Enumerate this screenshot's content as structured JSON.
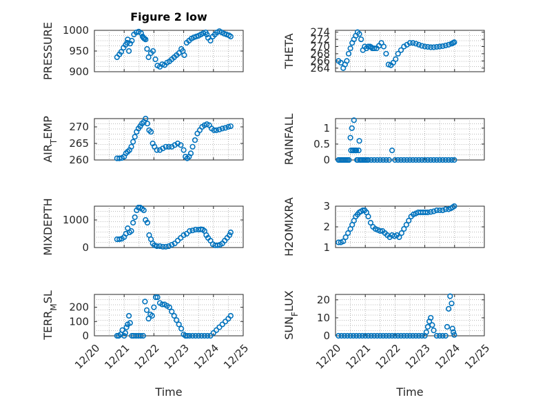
{
  "figure_title": "Figure 2 low",
  "marker_color": "#0072BD",
  "x_tick_labels": [
    "12/20",
    "12/21",
    "12/22",
    "12/23",
    "12/24",
    "12/25"
  ],
  "x_label": "Time",
  "chart_data": [
    {
      "type": "scatter",
      "title": "Figure 2 low",
      "ylabel": "PRESSURE",
      "ylim": [
        900,
        1000
      ],
      "yticks": [
        900,
        950,
        1000
      ],
      "xlim": [
        0,
        5
      ],
      "grid": true,
      "x": [
        0.76,
        0.84,
        0.9,
        0.98,
        1.05,
        1.1,
        1.12,
        1.16,
        1.2,
        1.26,
        1.33,
        1.41,
        1.49,
        1.57,
        1.62,
        1.65,
        1.68,
        1.72,
        1.77,
        1.82,
        1.9,
        1.97,
        2.05,
        2.12,
        2.2,
        2.28,
        2.36,
        2.44,
        2.52,
        2.6,
        2.68,
        2.76,
        2.84,
        2.92,
        2.97,
        3.02,
        3.1,
        3.18,
        3.26,
        3.34,
        3.42,
        3.5,
        3.58,
        3.66,
        3.74,
        3.78,
        3.82,
        3.9,
        3.98,
        4.05,
        4.12,
        4.2,
        4.28,
        4.36,
        4.44,
        4.52,
        4.58
      ],
      "y": [
        935,
        942,
        948,
        958,
        965,
        970,
        978,
        950,
        968,
        975,
        990,
        995,
        997,
        993,
        985,
        982,
        980,
        978,
        955,
        935,
        945,
        950,
        930,
        915,
        912,
        918,
        916,
        922,
        925,
        930,
        935,
        940,
        945,
        955,
        950,
        940,
        970,
        975,
        980,
        983,
        985,
        987,
        990,
        993,
        995,
        990,
        982,
        975,
        985,
        990,
        995,
        998,
        995,
        992,
        990,
        988,
        985
      ]
    },
    {
      "type": "scatter",
      "ylabel": "THETA",
      "ylim": [
        263,
        274.5
      ],
      "yticks": [
        264,
        266,
        268,
        270,
        272,
        274
      ],
      "xlim": [
        0,
        5
      ],
      "grid": true,
      "x": [
        0.1,
        0.18,
        0.26,
        0.32,
        0.38,
        0.44,
        0.5,
        0.56,
        0.62,
        0.68,
        0.74,
        0.8,
        0.86,
        0.92,
        0.98,
        1.04,
        1.1,
        1.16,
        1.2,
        1.24,
        1.3,
        1.38,
        1.46,
        1.54,
        1.62,
        1.7,
        1.78,
        1.86,
        1.94,
        2.02,
        2.1,
        2.2,
        2.3,
        2.4,
        2.5,
        2.6,
        2.7,
        2.8,
        2.9,
        3.0,
        3.1,
        3.2,
        3.3,
        3.4,
        3.5,
        3.6,
        3.7,
        3.8,
        3.9,
        3.95,
        3.99
      ],
      "y": [
        266,
        265.5,
        264,
        265,
        266,
        268,
        269.5,
        271,
        272,
        273,
        274,
        273.5,
        272,
        269,
        270,
        269.5,
        270,
        270,
        269.8,
        269.5,
        269.5,
        269.5,
        270.2,
        271,
        270,
        268,
        265,
        264.8,
        265.5,
        266.5,
        268,
        269,
        270,
        270.5,
        271,
        271,
        270.8,
        270.5,
        270.2,
        270,
        269.9,
        269.8,
        269.8,
        269.9,
        270,
        270.1,
        270.3,
        270.5,
        270.8,
        271,
        271.2
      ]
    },
    {
      "type": "scatter",
      "ylabel": "AIR_TEMP",
      "ylim": [
        260,
        272.5
      ],
      "yticks": [
        260,
        265,
        270
      ],
      "xlim": [
        0,
        5
      ],
      "grid": true,
      "x": [
        0.76,
        0.84,
        0.92,
        1.0,
        1.06,
        1.12,
        1.18,
        1.24,
        1.3,
        1.36,
        1.42,
        1.48,
        1.54,
        1.6,
        1.66,
        1.72,
        1.78,
        1.84,
        1.9,
        1.96,
        2.02,
        2.1,
        2.2,
        2.3,
        2.4,
        2.5,
        2.6,
        2.7,
        2.8,
        2.9,
        3.0,
        3.06,
        3.12,
        3.18,
        3.24,
        3.3,
        3.38,
        3.46,
        3.54,
        3.62,
        3.7,
        3.78,
        3.86,
        3.94,
        4.02,
        4.1,
        4.2,
        4.3,
        4.4,
        4.5,
        4.58
      ],
      "y": [
        260.5,
        260.5,
        260.6,
        261,
        262,
        262.5,
        263,
        264,
        265.5,
        267,
        268.5,
        269.5,
        270.2,
        271,
        271.5,
        272.5,
        271,
        269,
        268.5,
        265,
        264,
        263,
        263,
        263.5,
        264,
        264,
        264,
        264.5,
        265,
        264.5,
        263,
        261,
        260.5,
        261,
        262,
        264,
        266,
        268,
        269,
        270,
        270.5,
        270.8,
        270.5,
        269.5,
        269,
        269,
        269.2,
        269.5,
        269.7,
        270,
        270.2
      ]
    },
    {
      "type": "scatter",
      "ylabel": "RAINFALL",
      "ylim": [
        0,
        1.3
      ],
      "yticks": [
        0,
        0.5,
        1
      ],
      "ytick_labels": [
        "0",
        "0.5",
        "1"
      ],
      "xlim": [
        0,
        5
      ],
      "grid": true,
      "x": [
        0.1,
        0.15,
        0.2,
        0.25,
        0.3,
        0.35,
        0.4,
        0.45,
        0.5,
        0.52,
        0.55,
        0.58,
        0.6,
        0.62,
        0.65,
        0.68,
        0.7,
        0.72,
        0.75,
        0.78,
        0.8,
        0.82,
        0.85,
        0.9,
        0.95,
        1.0,
        1.05,
        1.1,
        1.2,
        1.3,
        1.4,
        1.5,
        1.6,
        1.7,
        1.8,
        1.9,
        2.0,
        2.1,
        2.2,
        2.3,
        2.4,
        2.5,
        2.6,
        2.7,
        2.8,
        2.9,
        3.0,
        3.1,
        3.2,
        3.3,
        3.4,
        3.5,
        3.6,
        3.7,
        3.8,
        3.9,
        3.99
      ],
      "y": [
        0,
        0,
        0,
        0,
        0,
        0,
        0,
        0,
        0.7,
        0.3,
        1.0,
        0.3,
        0.3,
        1.25,
        0.3,
        0.3,
        0.3,
        0,
        0,
        0.3,
        0.6,
        0,
        0,
        0,
        0,
        0,
        0,
        0,
        0,
        0,
        0,
        0,
        0,
        0,
        0,
        0.3,
        0,
        0,
        0,
        0,
        0,
        0,
        0,
        0,
        0,
        0,
        0,
        0,
        0,
        0,
        0,
        0,
        0,
        0,
        0,
        0,
        0
      ]
    },
    {
      "type": "scatter",
      "ylabel": "MIXDEPTH",
      "ylim": [
        0,
        1500
      ],
      "yticks": [
        0,
        1000
      ],
      "xlim": [
        0,
        5
      ],
      "grid": true,
      "x": [
        0.76,
        0.84,
        0.92,
        1.0,
        1.06,
        1.12,
        1.18,
        1.24,
        1.3,
        1.36,
        1.42,
        1.48,
        1.54,
        1.6,
        1.66,
        1.72,
        1.78,
        1.84,
        1.9,
        1.96,
        2.02,
        2.1,
        2.2,
        2.3,
        2.4,
        2.5,
        2.6,
        2.7,
        2.8,
        2.9,
        3.0,
        3.1,
        3.2,
        3.3,
        3.4,
        3.5,
        3.58,
        3.64,
        3.7,
        3.76,
        3.82,
        3.9,
        3.98,
        4.06,
        4.14,
        4.22,
        4.3,
        4.38,
        4.46,
        4.54,
        4.58
      ],
      "y": [
        300,
        300,
        320,
        380,
        500,
        700,
        550,
        600,
        900,
        1100,
        1350,
        1450,
        1450,
        1400,
        1350,
        1000,
        900,
        450,
        300,
        150,
        80,
        50,
        50,
        30,
        30,
        50,
        100,
        150,
        250,
        350,
        450,
        500,
        600,
        620,
        650,
        650,
        660,
        650,
        600,
        450,
        350,
        250,
        120,
        80,
        80,
        100,
        150,
        250,
        350,
        450,
        550
      ]
    },
    {
      "type": "scatter",
      "ylabel": "H2OMIXRA",
      "ylim": [
        1,
        3
      ],
      "yticks": [
        1,
        2,
        3
      ],
      "xlim": [
        0,
        5
      ],
      "grid": true,
      "x": [
        0.1,
        0.18,
        0.26,
        0.34,
        0.42,
        0.5,
        0.56,
        0.62,
        0.68,
        0.74,
        0.8,
        0.86,
        0.92,
        0.98,
        1.04,
        1.1,
        1.18,
        1.26,
        1.34,
        1.42,
        1.5,
        1.58,
        1.66,
        1.74,
        1.82,
        1.9,
        1.98,
        2.06,
        2.14,
        2.22,
        2.3,
        2.38,
        2.46,
        2.54,
        2.62,
        2.7,
        2.78,
        2.86,
        2.94,
        3.02,
        3.1,
        3.2,
        3.3,
        3.4,
        3.5,
        3.6,
        3.7,
        3.8,
        3.88,
        3.94,
        3.99
      ],
      "y": [
        1.25,
        1.25,
        1.3,
        1.5,
        1.7,
        1.9,
        2.1,
        2.3,
        2.5,
        2.6,
        2.7,
        2.75,
        2.8,
        2.8,
        2.7,
        2.5,
        2.2,
        2.0,
        1.9,
        1.85,
        1.8,
        1.8,
        1.7,
        1.6,
        1.5,
        1.6,
        1.55,
        1.6,
        1.5,
        1.7,
        1.9,
        2.1,
        2.3,
        2.5,
        2.6,
        2.65,
        2.7,
        2.7,
        2.7,
        2.7,
        2.7,
        2.72,
        2.75,
        2.8,
        2.8,
        2.8,
        2.85,
        2.85,
        2.9,
        2.95,
        3.0
      ]
    },
    {
      "type": "scatter",
      "ylabel": "TERR_MSL",
      "ylim": [
        0,
        290
      ],
      "yticks": [
        0,
        100,
        200
      ],
      "xlim": [
        0,
        5
      ],
      "grid": true,
      "x": [
        0.76,
        0.82,
        0.88,
        0.94,
        1.0,
        1.04,
        1.08,
        1.12,
        1.16,
        1.2,
        1.26,
        1.32,
        1.4,
        1.48,
        1.56,
        1.64,
        1.7,
        1.76,
        1.82,
        1.88,
        1.94,
        2.0,
        2.06,
        2.12,
        2.2,
        2.28,
        2.36,
        2.44,
        2.52,
        2.6,
        2.68,
        2.76,
        2.84,
        2.92,
        3.0,
        3.06,
        3.12,
        3.2,
        3.3,
        3.4,
        3.5,
        3.6,
        3.7,
        3.8,
        3.9,
        4.0,
        4.1,
        4.2,
        4.3,
        4.4,
        4.5,
        4.58
      ],
      "y": [
        0,
        0,
        10,
        40,
        0,
        20,
        60,
        80,
        140,
        90,
        0,
        0,
        0,
        0,
        0,
        0,
        240,
        180,
        120,
        150,
        140,
        200,
        270,
        270,
        230,
        220,
        220,
        210,
        200,
        170,
        140,
        110,
        80,
        50,
        10,
        0,
        0,
        0,
        0,
        0,
        0,
        0,
        0,
        0,
        0,
        20,
        40,
        60,
        80,
        100,
        120,
        140
      ]
    },
    {
      "type": "scatter",
      "ylabel": "SUN_FLUX",
      "ylim": [
        0,
        23
      ],
      "yticks": [
        0,
        10,
        20
      ],
      "xlim": [
        0,
        5
      ],
      "grid": true,
      "x": [
        0.1,
        0.2,
        0.3,
        0.4,
        0.5,
        0.6,
        0.7,
        0.8,
        0.9,
        1.0,
        1.1,
        1.2,
        1.3,
        1.4,
        1.5,
        1.6,
        1.7,
        1.8,
        1.9,
        2.0,
        2.1,
        2.2,
        2.3,
        2.4,
        2.5,
        2.6,
        2.7,
        2.8,
        2.9,
        3.0,
        3.05,
        3.1,
        3.15,
        3.2,
        3.25,
        3.3,
        3.4,
        3.5,
        3.6,
        3.7,
        3.75,
        3.8,
        3.85,
        3.9,
        3.93,
        3.96,
        3.99
      ],
      "y": [
        0,
        0,
        0,
        0,
        0,
        0,
        0,
        0,
        0,
        0,
        0,
        0,
        0,
        0,
        0,
        0,
        0,
        0,
        0,
        0,
        0,
        0,
        0,
        0,
        0,
        0,
        0,
        0,
        0,
        0,
        2,
        5,
        8,
        10,
        6,
        3,
        0,
        0,
        0,
        0,
        5,
        15,
        22,
        18,
        4,
        2,
        0.5
      ]
    }
  ]
}
